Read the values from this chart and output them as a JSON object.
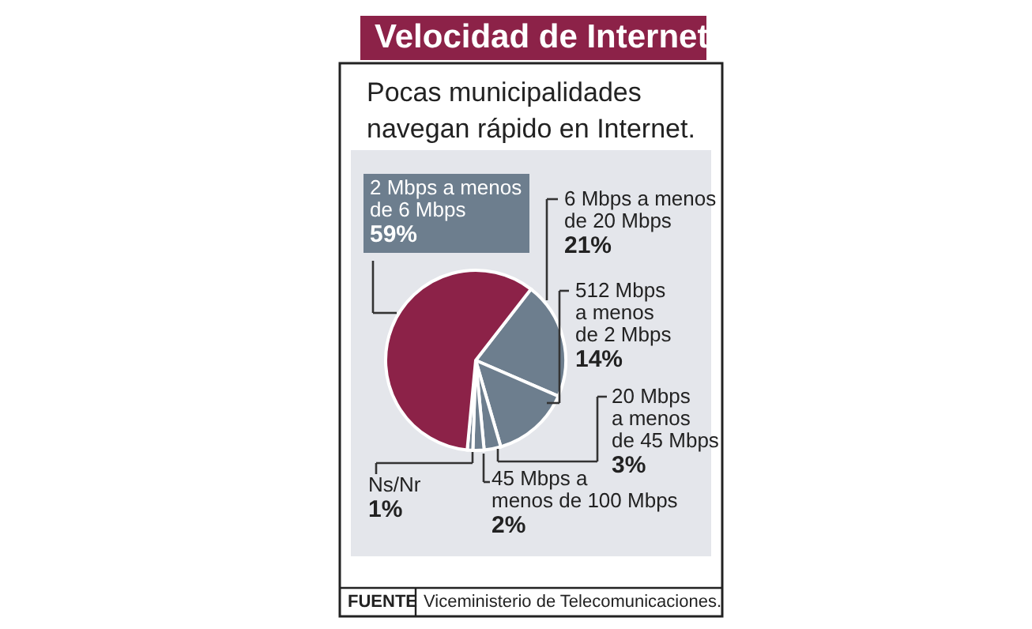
{
  "chart_data": {
    "type": "pie",
    "title": "Velocidad de Internet",
    "subtitle": "Pocas municipalidades navegan rápido en Internet.",
    "categories": [
      "6 Mbps a menos de 20 Mbps",
      "512 Mbps a menos de 2 Mbps",
      "20 Mbps a menos de 45 Mbps",
      "45 Mbps a menos de 100 Mbps",
      "Ns/Nr",
      "2 Mbps a menos de 6 Mbps"
    ],
    "values": [
      21,
      14,
      3,
      2,
      1,
      59
    ],
    "colors": [
      "#6d7e8e",
      "#6d7e8e",
      "#6d7e8e",
      "#6d7e8e",
      "#6d7e8e",
      "#8c2248"
    ],
    "value_labels": [
      "21%",
      "14%",
      "3%",
      "2%",
      "1%",
      "59%"
    ],
    "annotations": [
      "FUENTE",
      "Viceministerio de Telecomunicaciones."
    ]
  }
}
